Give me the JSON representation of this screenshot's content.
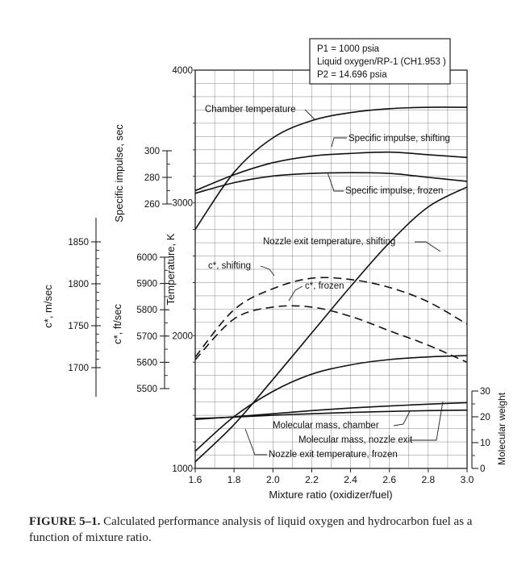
{
  "caption": {
    "label": "FIGURE 5–1.",
    "text": "Calculated performance analysis of liquid oxygen and hydrocarbon fuel as a function of mixture ratio."
  },
  "conditions": {
    "line1": "P1 = 1000 psia",
    "line2": "Liquid oxygen/RP-1 (CH1.953 )",
    "line3": "P2 = 14.696 psia"
  },
  "chart_data": {
    "type": "line",
    "xlabel": "Mixture ratio (oxidizer/fuel)",
    "xlim": [
      1.6,
      3.0
    ],
    "x_ticks": [
      "1.6",
      "1.8",
      "2.0",
      "2.2",
      "2.4",
      "2.6",
      "2.8",
      "3.0"
    ],
    "axes": {
      "temperature": {
        "label": "Temperature, K",
        "range": [
          1000,
          4000
        ],
        "ticks": [
          "1000",
          "2000",
          "3000",
          "4000"
        ]
      },
      "specific_impulse": {
        "label": "Specific impulse, sec",
        "range": [
          260,
          300
        ],
        "ticks": [
          "260",
          "280",
          "300"
        ]
      },
      "cstar_ft": {
        "label": "c*, ft/sec",
        "range": [
          5500,
          6000
        ],
        "ticks": [
          "5500",
          "5600",
          "5700",
          "5800",
          "5900",
          "6000"
        ]
      },
      "cstar_m": {
        "label": "c*, m/sec",
        "range": [
          1700,
          1850
        ],
        "ticks": [
          "1700",
          "1750",
          "1800",
          "1850"
        ]
      },
      "molecular": {
        "label": "Molecular weight",
        "range": [
          0,
          30
        ],
        "ticks": [
          "0",
          "10",
          "20",
          "30"
        ]
      }
    },
    "x": [
      1.6,
      1.8,
      2.0,
      2.2,
      2.4,
      2.6,
      2.8,
      3.0
    ],
    "series": [
      {
        "name": "Chamber temperature",
        "axis": "temperature",
        "style": "solid",
        "values": [
          2800,
          3230,
          3490,
          3620,
          3680,
          3710,
          3720,
          3720
        ]
      },
      {
        "name": "Specific impulse, shifting",
        "axis": "specific_impulse",
        "style": "solid",
        "values": [
          270,
          282,
          291,
          296,
          298,
          299,
          297,
          295
        ]
      },
      {
        "name": "Specific impulse, frozen",
        "axis": "specific_impulse",
        "style": "solid",
        "values": [
          268,
          276,
          281,
          283,
          283.5,
          283,
          280,
          277
        ]
      },
      {
        "name": "c*, shifting",
        "axis": "cstar_ft",
        "style": "dashed",
        "values": [
          5620,
          5800,
          5880,
          5920,
          5915,
          5885,
          5830,
          5745
        ]
      },
      {
        "name": "c*, frozen",
        "axis": "cstar_ft",
        "style": "dashed",
        "values": [
          5610,
          5765,
          5810,
          5810,
          5775,
          5720,
          5665,
          5600
        ]
      },
      {
        "name": "Nozzle exit temperature, shifting",
        "axis": "temperature",
        "style": "solid",
        "values": [
          1050,
          1330,
          1670,
          2020,
          2370,
          2700,
          2970,
          3120
        ]
      },
      {
        "name": "Nozzle exit temperature, frozen",
        "axis": "temperature",
        "style": "solid",
        "values": [
          1130,
          1390,
          1580,
          1710,
          1780,
          1820,
          1840,
          1850
        ]
      },
      {
        "name": "Molecular mass, chamber",
        "axis": "molecular",
        "style": "solid",
        "values": [
          19.3,
          19.9,
          20.6,
          21.2,
          21.7,
          22.1,
          22.4,
          22.6
        ]
      },
      {
        "name": "Molecular mass, nozzle exit",
        "axis": "molecular",
        "style": "solid",
        "values": [
          19.0,
          20.0,
          21.2,
          22.4,
          23.4,
          24.2,
          24.9,
          25.5
        ]
      }
    ],
    "labels": {
      "chamber_temperature": "Chamber temperature",
      "isp_shifting": "Specific impulse, shifting",
      "isp_frozen": "Specific impulse, frozen",
      "nozzle_shifting": "Nozzle exit temperature, shifting",
      "cstar_shifting": "c*, shifting",
      "cstar_frozen": "c*, frozen",
      "mm_chamber": "Molecular mass, chamber",
      "mm_nozzle": "Molecular mass, nozzle exit",
      "nozzle_frozen": "Nozzle exit temperature, frozen"
    }
  }
}
